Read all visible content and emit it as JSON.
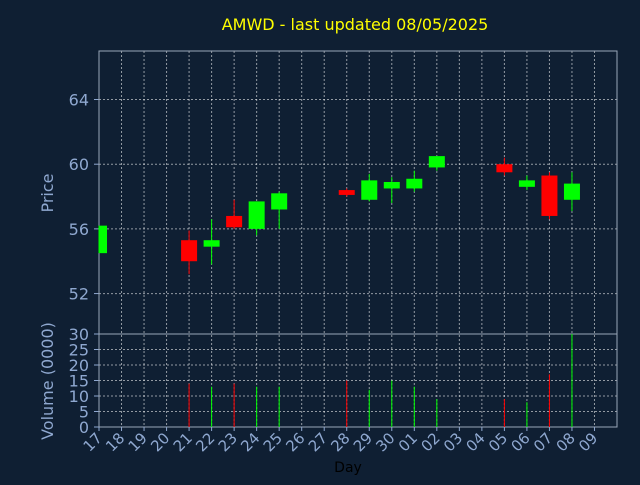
{
  "chart_data": {
    "type": "candlestick",
    "title": "AMWD - last updated 08/05/2025",
    "xlabel": "Day",
    "price_panel": {
      "ylabel": "Price",
      "ylim": [
        49.5,
        67.0
      ],
      "yticks": [
        52,
        56,
        60,
        64
      ],
      "grid": true
    },
    "volume_panel": {
      "ylabel": "Volume (0000)",
      "ylim": [
        0,
        30
      ],
      "yticks": [
        0,
        5,
        10,
        15,
        20,
        25,
        30
      ],
      "grid": true
    },
    "x_tick_labels": [
      "17",
      "18",
      "19",
      "20",
      "21",
      "22",
      "23",
      "24",
      "25",
      "26",
      "27",
      "28",
      "29",
      "30",
      "01",
      "02",
      "03",
      "04",
      "05",
      "06",
      "07",
      "08",
      "09"
    ],
    "colors": {
      "up": "#00ff00",
      "down": "#ff0000",
      "title": "#ffff00",
      "axis_text": "#8fa8d0",
      "background": "#0f1f33"
    },
    "candles": [
      {
        "day": "17",
        "open": 54.5,
        "high": 56.2,
        "low": 54.5,
        "close": 56.2,
        "volume": 0
      },
      {
        "day": "21",
        "open": 55.3,
        "high": 55.9,
        "low": 53.2,
        "close": 54.0,
        "volume": 14
      },
      {
        "day": "22",
        "open": 54.9,
        "high": 56.6,
        "low": 53.8,
        "close": 55.3,
        "volume": 13
      },
      {
        "day": "23",
        "open": 56.8,
        "high": 57.8,
        "low": 56.0,
        "close": 56.1,
        "volume": 14
      },
      {
        "day": "24",
        "open": 56.0,
        "high": 57.7,
        "low": 55.6,
        "close": 57.7,
        "volume": 13
      },
      {
        "day": "25",
        "open": 57.2,
        "high": 58.3,
        "low": 56.0,
        "close": 58.2,
        "volume": 13
      },
      {
        "day": "28",
        "open": 58.4,
        "high": 58.5,
        "low": 58.0,
        "close": 58.1,
        "volume": 15
      },
      {
        "day": "29",
        "open": 57.8,
        "high": 59.4,
        "low": 57.7,
        "close": 59.0,
        "volume": 12
      },
      {
        "day": "30",
        "open": 58.5,
        "high": 59.2,
        "low": 57.6,
        "close": 58.9,
        "volume": 15
      },
      {
        "day": "01",
        "open": 58.5,
        "high": 59.6,
        "low": 58.3,
        "close": 59.1,
        "volume": 13
      },
      {
        "day": "02",
        "open": 59.8,
        "high": 60.5,
        "low": 59.6,
        "close": 60.5,
        "volume": 9
      },
      {
        "day": "05",
        "open": 60.0,
        "high": 60.4,
        "low": 59.3,
        "close": 59.5,
        "volume": 9
      },
      {
        "day": "06",
        "open": 58.6,
        "high": 59.3,
        "low": 58.4,
        "close": 59.0,
        "volume": 8
      },
      {
        "day": "07",
        "open": 59.3,
        "high": 59.5,
        "low": 56.6,
        "close": 56.8,
        "volume": 17
      },
      {
        "day": "08",
        "open": 57.8,
        "high": 59.5,
        "low": 57.1,
        "close": 58.8,
        "volume": 30
      }
    ]
  }
}
